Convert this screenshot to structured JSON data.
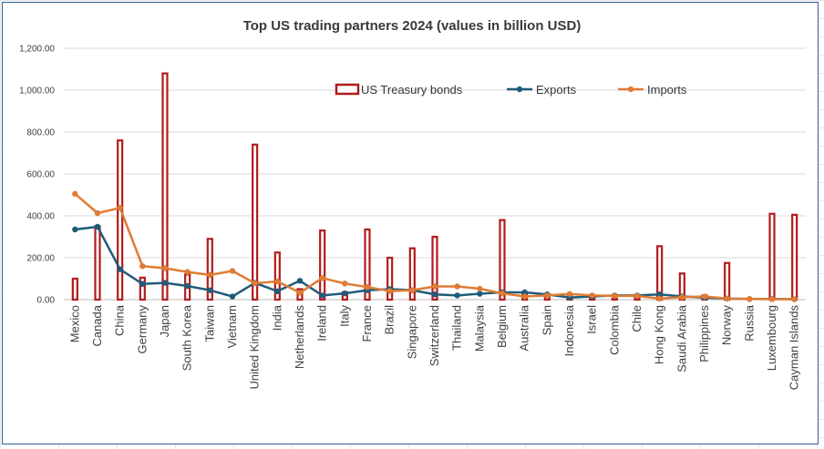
{
  "colors": {
    "bonds": "#b01c1c",
    "exports": "#1f5c7a",
    "imports": "#e07b33",
    "grid": "#d9d9d9"
  },
  "chart_data": {
    "type": "bar+line",
    "title": "Top US trading partners 2024 (values in billion USD)",
    "ylim": [
      0,
      1200
    ],
    "yticks": [
      "0.00",
      "200.00",
      "400.00",
      "600.00",
      "800.00",
      "1,000.00",
      "1,200.00"
    ],
    "ytick_values": [
      0,
      200,
      400,
      600,
      800,
      1000,
      1200
    ],
    "grid": true,
    "legend_position": "top-right",
    "categories": [
      "Mexico",
      "Canada",
      "China",
      "Germany",
      "Japan",
      "South Korea",
      "Taiwan",
      "Vietnam",
      "United Kingdom",
      "India",
      "Netherlands",
      "Ireland",
      "Italy",
      "France",
      "Brazil",
      "Singapore",
      "Switzerland",
      "Thailand",
      "Malaysia",
      "Belgium",
      "Australia",
      "Spain",
      "Indonesia",
      "Israel",
      "Colombia",
      "Chile",
      "Hong Kong",
      "Saudi Arabia",
      "Philippines",
      "Norway",
      "Russia",
      "Luxembourg",
      "Cayman Islands"
    ],
    "series": [
      {
        "name": "US Treasury bonds",
        "kind": "bar",
        "values": [
          100,
          350,
          760,
          105,
          1080,
          120,
          290,
          0,
          740,
          225,
          50,
          330,
          35,
          335,
          200,
          245,
          300,
          0,
          0,
          380,
          30,
          20,
          15,
          10,
          5,
          15,
          255,
          125,
          20,
          175,
          0,
          410,
          405
        ]
      },
      {
        "name": "Exports",
        "kind": "line",
        "values": [
          335,
          348,
          145,
          75,
          80,
          65,
          45,
          15,
          80,
          40,
          90,
          20,
          30,
          45,
          50,
          45,
          25,
          20,
          28,
          35,
          35,
          25,
          10,
          15,
          20,
          20,
          25,
          15,
          10,
          5,
          3,
          3,
          2
        ]
      },
      {
        "name": "Imports",
        "kind": "line",
        "values": [
          505,
          413,
          438,
          160,
          150,
          132,
          118,
          137,
          78,
          87,
          33,
          103,
          77,
          60,
          41,
          45,
          63,
          63,
          52,
          30,
          15,
          20,
          27,
          20,
          18,
          18,
          5,
          12,
          15,
          5,
          3,
          2,
          2
        ]
      }
    ]
  }
}
